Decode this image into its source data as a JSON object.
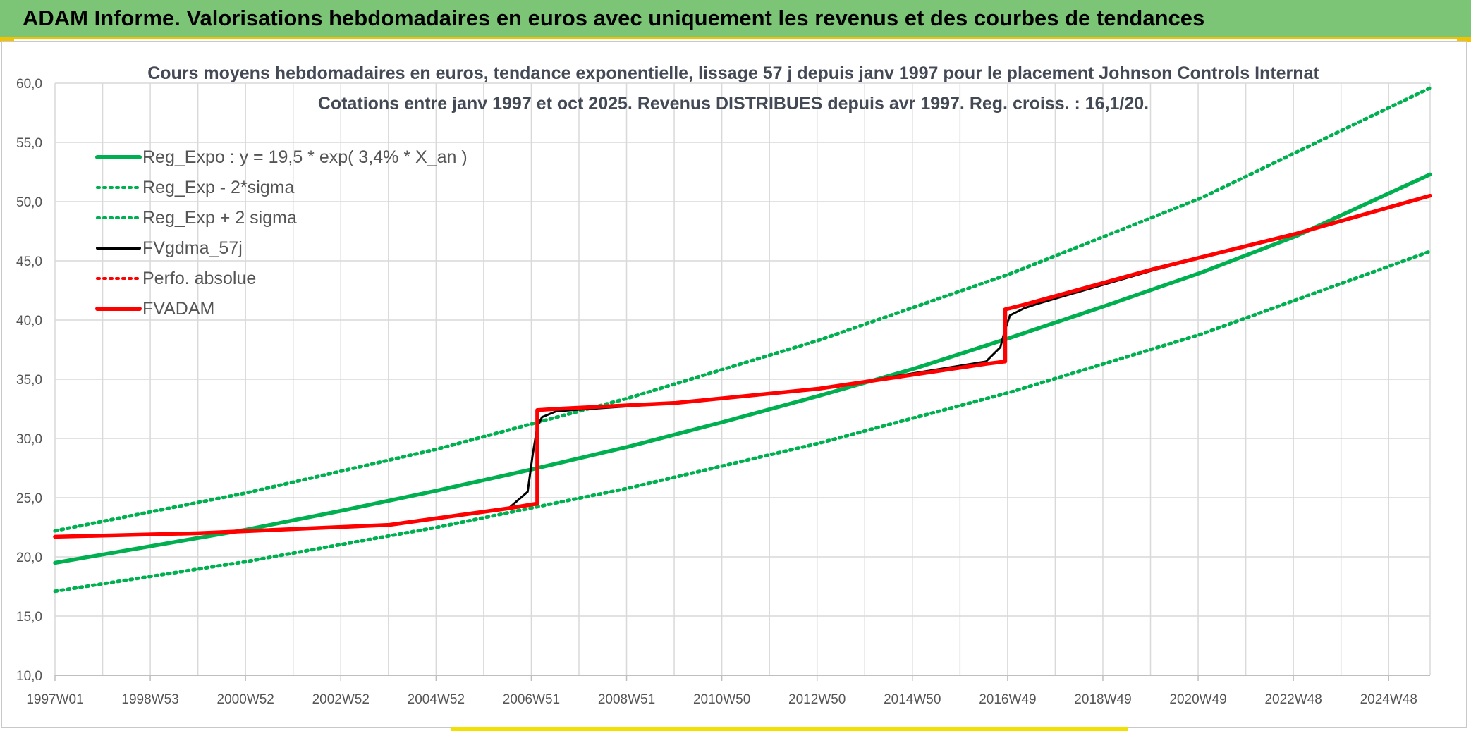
{
  "banner": {
    "title": "ADAM Informe. Valorisations hebdomadaires en euros avec uniquement les revenus et des courbes de tendances"
  },
  "colors": {
    "banner_bg": "#7cc576",
    "banner_accent": "#f2c200",
    "reg_expo": "#00b050",
    "fvgdma": "#000000",
    "fvadam": "#ff0000",
    "grid": "#d9d9d9"
  },
  "chart_data": {
    "type": "line",
    "title": "Cours moyens hebdomadaires en euros, tendance exponentielle, lissage 57 j depuis janv 1997 pour le placement Johnson Controls Internat",
    "subtitle": "Cotations entre janv 1997 et oct 2025. Revenus DISTRIBUES depuis avr 1997. Reg. croiss. : 16,1/20.",
    "xlabel": "",
    "ylabel": "",
    "ylim": [
      10,
      60
    ],
    "xlim": [
      1997.0,
      2025.8
    ],
    "y_ticks": [
      "10,0",
      "15,0",
      "20,0",
      "25,0",
      "30,0",
      "35,0",
      "40,0",
      "45,0",
      "50,0",
      "55,0",
      "60,0"
    ],
    "x_tick_labels": [
      "1997W01",
      "1998W53",
      "2000W52",
      "2002W52",
      "2004W52",
      "2006W51",
      "2008W51",
      "2010W50",
      "2012W50",
      "2014W50",
      "2016W49",
      "2018W49",
      "2020W49",
      "2022W48",
      "2024W48"
    ],
    "grid": true,
    "legend_position": "top-left",
    "series": [
      {
        "name": "Reg_Expo : y = 19,5 * exp( 3,4% *  X_an )",
        "style": "solid",
        "color": "#00b050",
        "x": [
          1997.0,
          1999.0,
          2001.0,
          2003.0,
          2005.0,
          2007.0,
          2009.0,
          2011.0,
          2013.0,
          2015.0,
          2017.0,
          2019.0,
          2021.0,
          2023.0,
          2025.8
        ],
        "values": [
          19.5,
          20.9,
          22.3,
          23.9,
          25.6,
          27.4,
          29.3,
          31.4,
          33.6,
          35.9,
          38.5,
          41.2,
          44.0,
          47.1,
          52.3
        ]
      },
      {
        "name": "Reg_Exp - 2*sigma",
        "style": "dotted",
        "color": "#00b050",
        "x": [
          1997.0,
          2001.0,
          2005.0,
          2009.0,
          2013.0,
          2017.0,
          2021.0,
          2025.8
        ],
        "values": [
          17.1,
          19.6,
          22.5,
          25.8,
          29.6,
          33.9,
          38.8,
          45.8
        ]
      },
      {
        "name": "Reg_Exp + 2 sigma",
        "style": "dotted",
        "color": "#00b050",
        "x": [
          1997.0,
          2001.0,
          2005.0,
          2009.0,
          2013.0,
          2017.0,
          2021.0,
          2025.8
        ],
        "values": [
          22.2,
          25.4,
          29.1,
          33.4,
          38.3,
          43.9,
          50.3,
          59.6
        ]
      },
      {
        "name": "FVgdma_57j",
        "style": "solid",
        "color": "#000000",
        "x": [
          1997.0,
          2000.0,
          2004.0,
          2006.5,
          2006.9,
          2007.0,
          2007.1,
          2007.2,
          2007.5,
          2010.0,
          2013.0,
          2016.5,
          2016.8,
          2016.9,
          2017.0,
          2017.3,
          2017.6,
          2020.0,
          2023.0,
          2025.8
        ],
        "values": [
          21.7,
          22.0,
          22.7,
          24.1,
          25.5,
          28.5,
          31.0,
          31.8,
          32.3,
          33.0,
          34.2,
          36.5,
          37.7,
          39.2,
          40.4,
          41.0,
          41.4,
          44.2,
          47.3,
          50.5
        ]
      },
      {
        "name": "Perfo. absolue",
        "style": "dotted",
        "color": "#ff0000",
        "x": [],
        "values": []
      },
      {
        "name": "FVADAM",
        "style": "solid",
        "color": "#ff0000",
        "x": [
          1997.0,
          2000.0,
          2004.0,
          2006.5,
          2007.1,
          2007.1,
          2007.5,
          2010.0,
          2013.0,
          2016.5,
          2016.9,
          2016.9,
          2017.3,
          2020.0,
          2023.0,
          2025.8
        ],
        "values": [
          21.7,
          22.0,
          22.7,
          24.1,
          24.5,
          32.4,
          32.5,
          33.0,
          34.2,
          36.3,
          36.5,
          40.9,
          41.3,
          44.3,
          47.3,
          50.5
        ]
      }
    ]
  }
}
